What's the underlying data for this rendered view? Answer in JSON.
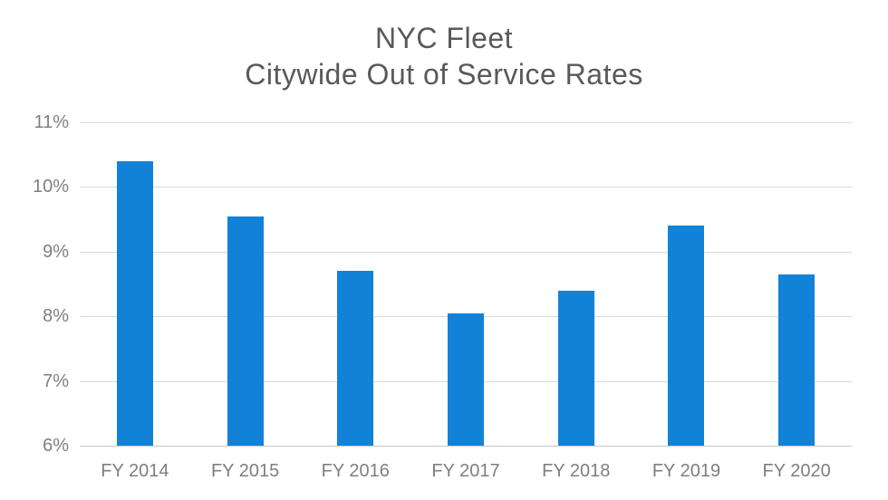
{
  "chart_data": {
    "type": "bar",
    "title": "NYC Fleet Citywide Out of Service Rates",
    "title_lines": [
      "NYC Fleet",
      "Citywide Out of Service Rates"
    ],
    "categories": [
      "FY 2014",
      "FY 2015",
      "FY 2016",
      "FY 2017",
      "FY 2018",
      "FY 2019",
      "FY 2020"
    ],
    "values": [
      10.4,
      9.55,
      8.7,
      8.05,
      8.4,
      9.4,
      8.65
    ],
    "ylim": [
      6,
      11
    ],
    "ytick_values": [
      11,
      10,
      9,
      8,
      7,
      6
    ],
    "ytick_labels": [
      "11%",
      "10%",
      "9%",
      "8%",
      "7%",
      "6%"
    ],
    "xlabel": "",
    "ylabel": "",
    "grid": "horizontal",
    "legend": "none",
    "bar_color": "#1282d8",
    "gridline_color": "#d9d9d9",
    "axis_line_color": "#c6c6c6",
    "title_color": "#595959",
    "tick_label_color": "#7f7f7f",
    "background_color": "#ffffff"
  }
}
